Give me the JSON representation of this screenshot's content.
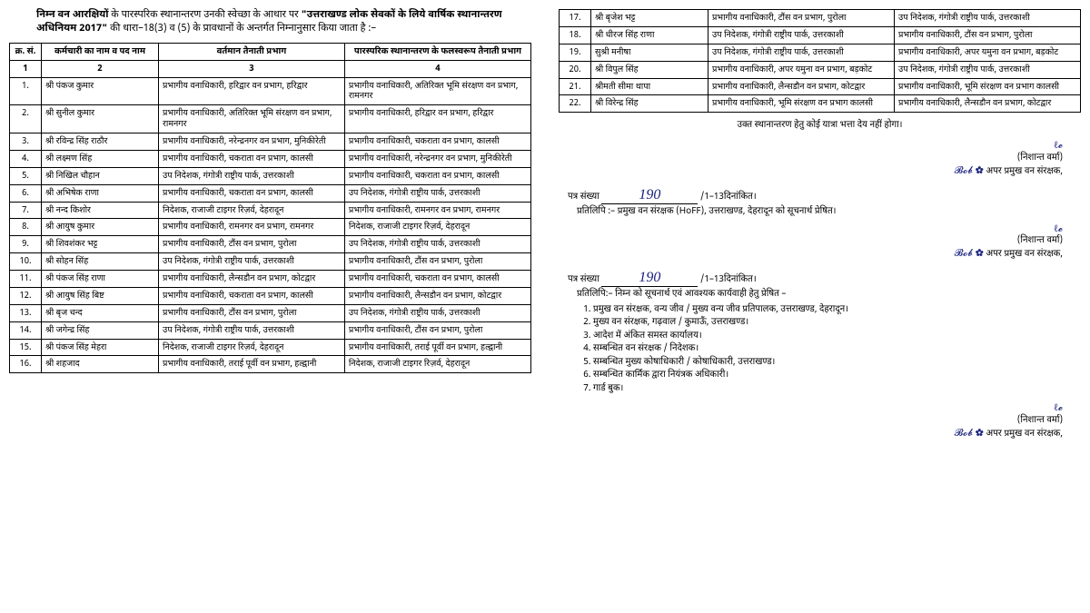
{
  "intro": {
    "line1_prefix": "निम्न वन आरक्षियों",
    "line1_rest": " के पारस्परिक स्थानान्तरण उनकी स्वेच्छा के आधार पर ",
    "line2_bold": "\"उत्तराखण्ड लोक सेवकों के लिये वार्षिक स्थानान्तरण अधिनियम 2017\"",
    "line2_rest": " की धारा–18(3) व (5) के प्रावधानों के अन्तर्गत निम्नानुसार किया जाता है :–"
  },
  "headers": {
    "sn": "क्र. सं.",
    "name": "कर्मचारी का नाम व पद नाम",
    "current": "वर्तमान तैनाती प्रभाग",
    "new": "पारस्परिक स्थानान्तरण के फलस्वरूप तैनाती प्रभाग",
    "c1": "1",
    "c2": "2",
    "c3": "3",
    "c4": "4"
  },
  "rows": [
    {
      "n": "1.",
      "name": "श्री पंकज कुमार",
      "cur": "प्रभागीय वनाधिकारी, हरिद्वार वन प्रभाग, हरिद्वार",
      "nw": "प्रभागीय वनाधिकारी, अतिरिक्त भूमि संरक्षण वन प्रभाग, रामनगर"
    },
    {
      "n": "2.",
      "name": "श्री सुनील कुमार",
      "cur": "प्रभागीय वनाधिकारी, अतिरिक्त भूमि संरक्षण वन प्रभाग, रामनगर",
      "nw": "प्रभागीय वनाधिकारी, हरिद्वार वन प्रभाग, हरिद्वार"
    },
    {
      "n": "3.",
      "name": "श्री रविन्द्र सिंह राठौर",
      "cur": "प्रभागीय वनाधिकारी, नरेन्द्रनगर वन प्रभाग, मुनिकीरेती",
      "nw": "प्रभागीय वनाधिकारी, चकराता वन प्रभाग, कालसी"
    },
    {
      "n": "4.",
      "name": "श्री लक्ष्मण सिंह",
      "cur": "प्रभागीय वनाधिकारी, चकराता वन प्रभाग, कालसी",
      "nw": "प्रभागीय वनाधिकारी, नरेन्द्रनगर वन प्रभाग, मुनिकीरेती"
    },
    {
      "n": "5.",
      "name": "श्री निखिल चौहान",
      "cur": "उप निदेशक, गंगोत्री राष्ट्रीय पार्क, उत्तरकाशी",
      "nw": "प्रभागीय वनाधिकारी, चकराता वन प्रभाग, कालसी"
    },
    {
      "n": "6.",
      "name": "श्री अभिषेक राणा",
      "cur": "प्रभागीय वनाधिकारी, चकराता वन प्रभाग, कालसी",
      "nw": "उप निदेशक, गंगोत्री राष्ट्रीय पार्क, उत्तरकाशी"
    },
    {
      "n": "7.",
      "name": "श्री नन्द किशोर",
      "cur": "निदेशक, राजाजी टाइगर रिज़र्व, देहरादून",
      "nw": "प्रभागीय वनाधिकारी, रामनगर वन प्रभाग, रामनगर"
    },
    {
      "n": "8.",
      "name": "श्री आयुष कुमार",
      "cur": "प्रभागीय वनाधिकारी, रामनगर वन प्रभाग, रामनगर",
      "nw": "निदेशक, राजाजी टाइगर रिज़र्व, देहरादून"
    },
    {
      "n": "9.",
      "name": "श्री शिवशंकर भट्ट",
      "cur": "प्रभागीय वनाधिकारी, टौंस वन प्रभाग, पुरोला",
      "nw": "उप निदेशक, गंगोत्री राष्ट्रीय पार्क, उत्तरकाशी"
    },
    {
      "n": "10.",
      "name": "श्री सोहन सिंह",
      "cur": "उप निदेशक, गंगोत्री राष्ट्रीय पार्क, उत्तरकाशी",
      "nw": "प्रभागीय वनाधिकारी, टौंस वन प्रभाग, पुरोला"
    },
    {
      "n": "11.",
      "name": "श्री पंकज सिंह राणा",
      "cur": "प्रभागीय वनाधिकारी, लैन्सडौन वन प्रभाग, कोटद्वार",
      "nw": "प्रभागीय वनाधिकारी, चकराता वन प्रभाग, कालसी"
    },
    {
      "n": "12.",
      "name": "श्री आयुष सिंह बिष्ट",
      "cur": "प्रभागीय वनाधिकारी, चकराता वन प्रभाग, कालसी",
      "nw": "प्रभागीय वनाधिकारी, लैन्सडौन वन प्रभाग, कोटद्वार"
    },
    {
      "n": "13.",
      "name": "श्री बृज चन्द",
      "cur": "प्रभागीय वनाधिकारी, टौंस वन प्रभाग, पुरोला",
      "nw": "उप निदेशक, गंगोत्री राष्ट्रीय पार्क, उत्तरकाशी"
    },
    {
      "n": "14.",
      "name": "श्री जगेन्द्र सिंह",
      "cur": "उप निदेशक, गंगोत्री राष्ट्रीय पार्क, उत्तरकाशी",
      "nw": "प्रभागीय वनाधिकारी, टौंस वन प्रभाग, पुरोला"
    },
    {
      "n": "15.",
      "name": "श्री पंकज सिंह मेहरा",
      "cur": "निदेशक, राजाजी टाइगर रिज़र्व, देहरादून",
      "nw": "प्रभागीय वनाधिकारी, तराई पूर्वी वन प्रभाग, हल्द्वानी"
    },
    {
      "n": "16.",
      "name": "श्री शहजाद",
      "cur": "प्रभागीय वनाधिकारी, तराई पूर्वी वन प्रभाग, हल्द्वानी",
      "nw": "निदेशक, राजाजी टाइगर रिज़र्व, देहरादून"
    }
  ],
  "rows2": [
    {
      "n": "17.",
      "name": "श्री बृजेश भट्ट",
      "cur": "प्रभागीय वनाधिकारी, टौंस वन प्रभाग, पुरोला",
      "nw": "उप निदेशक, गंगोत्री राष्ट्रीय पार्क, उत्तरकाशी"
    },
    {
      "n": "18.",
      "name": "श्री धीरज सिंह राणा",
      "cur": "उप निदेशक, गंगोत्री राष्ट्रीय पार्क, उत्तरकाशी",
      "nw": "प्रभागीय वनाधिकारी, टौंस वन प्रभाग, पुरोला"
    },
    {
      "n": "19.",
      "name": "सुश्री मनीषा",
      "cur": "उप निदेशक, गंगोत्री राष्ट्रीय पार्क, उत्तरकाशी",
      "nw": "प्रभागीय वनाधिकारी, अपर यमुना वन प्रभाग, बड़कोट"
    },
    {
      "n": "20.",
      "name": "श्री विपुल सिंह",
      "cur": "प्रभागीय वनाधिकारी, अपर यमुना वन प्रभाग, बड़कोट",
      "nw": "उप निदेशक, गंगोत्री राष्ट्रीय पार्क, उत्तरकाशी"
    },
    {
      "n": "21.",
      "name": "श्रीमती सीमा थापा",
      "cur": "प्रभागीय वनाधिकारी, लैन्सडौन वन प्रभाग, कोटद्वार",
      "nw": "प्रभागीय वनाधिकारी, भूमि संरक्षण वन प्रभाग कालसी"
    },
    {
      "n": "22.",
      "name": "श्री विरेन्द्र सिंह",
      "cur": "प्रभागीय वनाधिकारी, भूमि संरक्षण वन प्रभाग कालसी",
      "nw": "प्रभागीय वनाधिकारी, लैन्सडौन वन प्रभाग, कोटद्वार"
    }
  ],
  "note": "उक्त स्थानान्तरण हेतु कोई यात्रा भत्ता देय नहीं होगा।",
  "sig": {
    "scribble": "ℓ𝓮",
    "name": "(निशान्त वर्मा)",
    "scribble2": "𝓑𝓸𝓫 ✿",
    "title": "अपर प्रमुख वन संरक्षक,"
  },
  "letter1": {
    "prefix": "पत्र संख्या",
    "num": "190",
    "suffix": "/1–13दिनांकित।",
    "copy": "प्रतिलिपि :– प्रमुख वन संरक्षक (HoFF), उत्तराखण्ड, देहरादून को सूचनार्थ प्रेषित।"
  },
  "letter2": {
    "prefix": "पत्र संख्या",
    "num": "190",
    "suffix": "/1–13दिनांकित।",
    "copy": "प्रतिलिपि:– निम्न को सूचनार्थ एवं आवश्यक कार्यवाही हेतु प्रेषित –"
  },
  "dist": [
    "प्रमुख वन संरक्षक, वन्य जीव / मुख्य वन्य जीव प्रतिपालक, उत्तराखण्ड, देहरादून।",
    "मुख्य वन संरक्षक, गढ़वाल / कुमाऊँ, उत्तराखण्ड।",
    "आदेश में अंकित समस्त कार्यालय।",
    "सम्बन्धित वन संरक्षक / निदेशक।",
    "सम्बन्धित मुख्य कोषाधिकारी / कोषाधिकारी, उत्तराखण्ड।",
    "सम्बन्धित कार्मिक द्वारा नियंत्रक अधिकारी।",
    "गार्ड बुक।"
  ]
}
